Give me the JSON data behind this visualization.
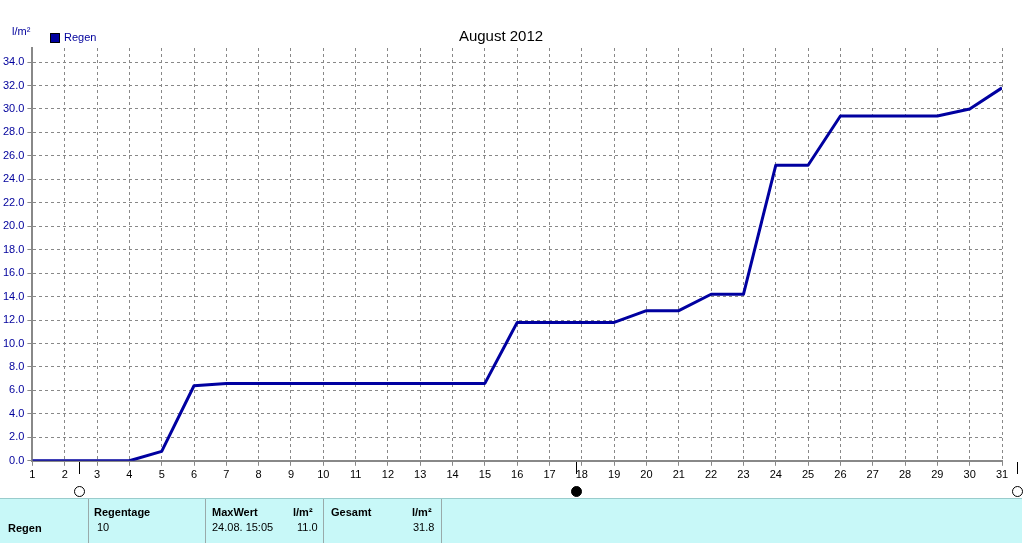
{
  "chart_data": {
    "type": "line",
    "title": "August 2012",
    "ylabel": "l/m²",
    "x": [
      1,
      2,
      3,
      4,
      5,
      6,
      7,
      8,
      9,
      10,
      11,
      12,
      13,
      14,
      15,
      16,
      17,
      18,
      19,
      20,
      21,
      22,
      23,
      24,
      25,
      26,
      27,
      28,
      29,
      30,
      31
    ],
    "series": [
      {
        "name": "Regen",
        "color": "#0000a0",
        "values": [
          0,
          0,
          0,
          0,
          0.8,
          6.4,
          6.6,
          6.6,
          6.6,
          6.6,
          6.6,
          6.6,
          6.6,
          6.6,
          6.6,
          11.8,
          11.8,
          11.8,
          11.8,
          12.8,
          12.8,
          14.2,
          14.2,
          25.2,
          25.2,
          29.4,
          29.4,
          29.4,
          29.4,
          30.0,
          31.8
        ]
      }
    ],
    "xlim": [
      1,
      31
    ],
    "xticks": [
      1,
      2,
      3,
      4,
      5,
      6,
      7,
      8,
      9,
      10,
      11,
      12,
      13,
      14,
      15,
      16,
      17,
      18,
      19,
      20,
      21,
      22,
      23,
      24,
      25,
      26,
      27,
      28,
      29,
      30,
      31
    ],
    "ylim": [
      0,
      35.2
    ],
    "yticks": [
      {
        "value": 0,
        "label": "0.0"
      },
      {
        "value": 2,
        "label": "2.0"
      },
      {
        "value": 4,
        "label": "4.0"
      },
      {
        "value": 6,
        "label": "6.0"
      },
      {
        "value": 8,
        "label": "8.0"
      },
      {
        "value": 10,
        "label": "10.0"
      },
      {
        "value": 12,
        "label": "12.0"
      },
      {
        "value": 14,
        "label": "14.0"
      },
      {
        "value": 16,
        "label": "16.0"
      },
      {
        "value": 18,
        "label": "18.0"
      },
      {
        "value": 20,
        "label": "20.0"
      },
      {
        "value": 22,
        "label": "22.0"
      },
      {
        "value": 24,
        "label": "24.0"
      },
      {
        "value": 26,
        "label": "26.0"
      },
      {
        "value": 28,
        "label": "28.0"
      },
      {
        "value": 30,
        "label": "30.0"
      },
      {
        "value": 32,
        "label": "32.0"
      },
      {
        "value": 34,
        "label": "34.0"
      }
    ],
    "grid": true,
    "legend": "top left",
    "marker": "none",
    "line_style": "solid",
    "annotations": [
      "Regen",
      "Regentage",
      "10",
      "MaxWert",
      "24.08. 15:05",
      "l/m²",
      "11.0",
      "Gesamt",
      "l/m²",
      "31.8"
    ]
  }
}
